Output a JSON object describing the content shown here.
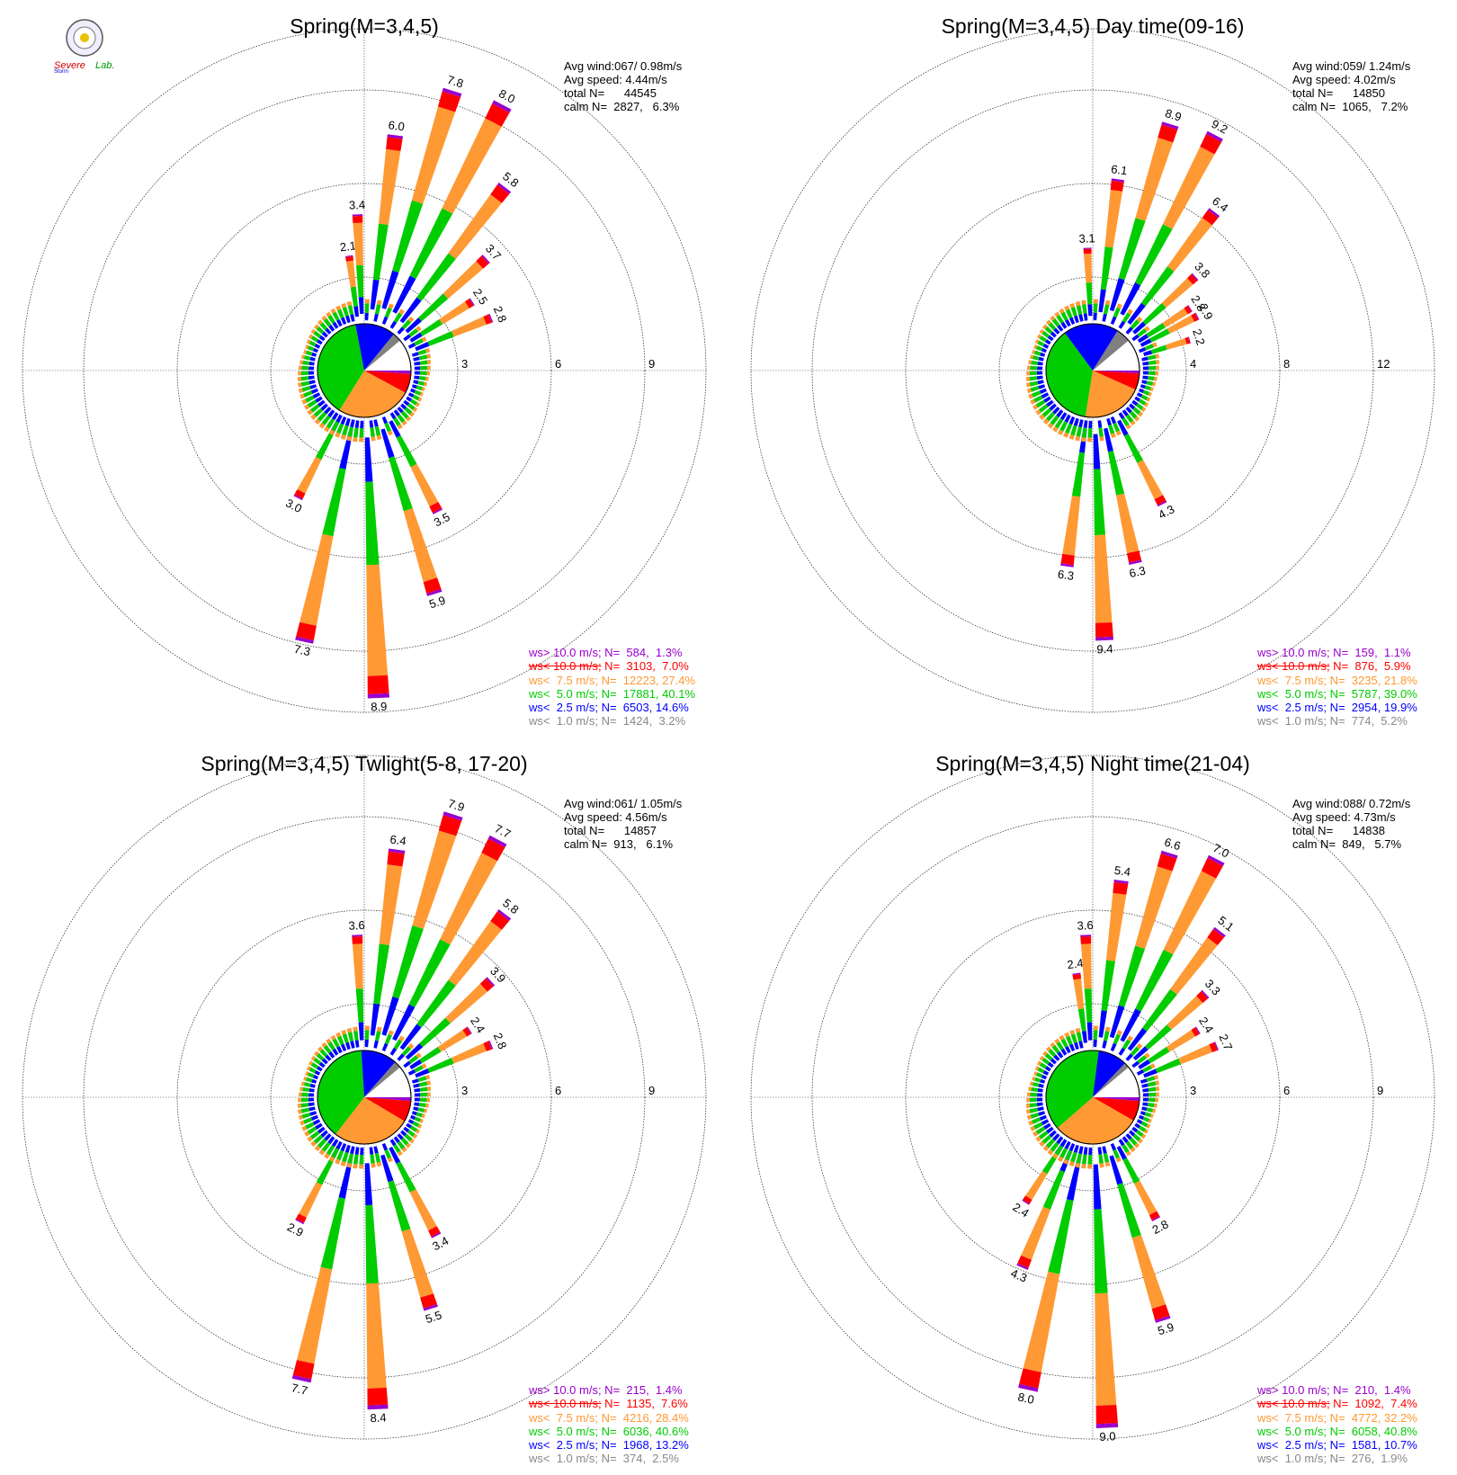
{
  "logo": {
    "text_1": "Severe",
    "text_2": "Storm",
    "text_3": "Lab."
  },
  "legend_template": {
    "ws_gt_10": {
      "op": "ws>",
      "speed": "10.0 m/s;",
      "color": "#9900cc",
      "strike": false
    },
    "ws_lt_10": {
      "op": "ws<",
      "speed": "10.0 m/s;",
      "color": "#ff0000",
      "strike": true
    },
    "ws_lt_7_5": {
      "op": "ws<",
      "speed": " 7.5 m/s;",
      "color": "#ff9933",
      "strike": false
    },
    "ws_lt_5": {
      "op": "ws<",
      "speed": " 5.0 m/s;",
      "color": "#00cc00",
      "strike": false
    },
    "ws_lt_2_5": {
      "op": "ws<",
      "speed": " 2.5 m/s;",
      "color": "#0000ff",
      "strike": false
    },
    "ws_lt_1": {
      "op": "ws<",
      "speed": " 1.0 m/s;",
      "color": "#888888",
      "strike": false
    }
  },
  "colors": {
    "b1": "#ffffff",
    "b2": "#0000ff",
    "b3": "#00cc00",
    "b4": "#ff9933",
    "b5": "#ff0000",
    "b6": "#9900cc",
    "calm_grey": "#808080",
    "ring": "#000000"
  },
  "chart_data": [
    {
      "type": "wind-rose",
      "title": "Spring(M=3,4,5)",
      "stats": {
        "avg_wind_label": "Avg wind:",
        "avg_wind": "067/ 0.98m/s",
        "avg_speed_label": "Avg speed:",
        "avg_speed": "4.44m/s",
        "total_label": "total N=",
        "total": "44545",
        "calm_label": "calm N=",
        "calm": "2827,   6.3%"
      },
      "ring_labels": [
        "3",
        "6",
        "9"
      ],
      "rmax": 9,
      "labeled_spokes": [
        {
          "dir": -7.5,
          "value": "2.1"
        },
        {
          "dir": -2.5,
          "value": "3.4"
        },
        {
          "dir": 7.5,
          "value": "6.0"
        },
        {
          "dir": 17.5,
          "value": "7.8"
        },
        {
          "dir": 27.5,
          "value": "8.0"
        },
        {
          "dir": 37.5,
          "value": "5.8"
        },
        {
          "dir": 47.5,
          "value": "3.7"
        },
        {
          "dir": 57.5,
          "value": "2.5"
        },
        {
          "dir": 67.5,
          "value": "2.8"
        },
        {
          "dir": 152.5,
          "value": "3.5"
        },
        {
          "dir": 162.5,
          "value": "5.9"
        },
        {
          "dir": 177.5,
          "value": "8.9"
        },
        {
          "dir": 192.5,
          "value": "7.3"
        },
        {
          "dir": 207.5,
          "value": "3.0"
        }
      ],
      "legend": {
        "ws_gt_10": "584,  1.3%",
        "ws_lt_10": "3103,  7.0%",
        "ws_lt_7_5": "12223, 27.4%",
        "ws_lt_5": "17881, 40.1%",
        "ws_lt_2_5": "6503, 14.6%",
        "ws_lt_1": "1424,  3.2%"
      },
      "pie": [
        1.3,
        7.0,
        27.4,
        40.1,
        14.6,
        3.2
      ]
    },
    {
      "type": "wind-rose",
      "title": "Spring(M=3,4,5) Day time(09-16)",
      "stats": {
        "avg_wind_label": "Avg wind:",
        "avg_wind": "059/ 1.24m/s",
        "avg_speed_label": "Avg speed:",
        "avg_speed": "4.02m/s",
        "total_label": "total N=",
        "total": "14850",
        "calm_label": "calm N=",
        "calm": "1065,   7.2%"
      },
      "ring_labels": [
        "4",
        "8",
        "12"
      ],
      "rmax": 12,
      "labeled_spokes": [
        {
          "dir": -2.5,
          "value": "3.1"
        },
        {
          "dir": 7.5,
          "value": "6.1"
        },
        {
          "dir": 17.5,
          "value": "8.9"
        },
        {
          "dir": 27.5,
          "value": "9.2"
        },
        {
          "dir": 37.5,
          "value": "6.4"
        },
        {
          "dir": 47.5,
          "value": "3.8"
        },
        {
          "dir": 57.5,
          "value": "2.8"
        },
        {
          "dir": 62.5,
          "value": "2.9"
        },
        {
          "dir": 72.5,
          "value": "2.2"
        },
        {
          "dir": 152.5,
          "value": "4.3"
        },
        {
          "dir": 167.5,
          "value": "6.3"
        },
        {
          "dir": 177.5,
          "value": "9.4"
        },
        {
          "dir": 187.5,
          "value": "6.3"
        }
      ],
      "legend": {
        "ws_gt_10": "159,  1.1%",
        "ws_lt_10": "876,  5.9%",
        "ws_lt_7_5": "3235, 21.8%",
        "ws_lt_5": "5787, 39.0%",
        "ws_lt_2_5": "2954, 19.9%",
        "ws_lt_1": "774,  5.2%"
      },
      "pie": [
        1.1,
        5.9,
        21.8,
        39.0,
        19.9,
        5.2
      ]
    },
    {
      "type": "wind-rose",
      "title": "Spring(M=3,4,5) Twlight(5-8, 17-20)",
      "stats": {
        "avg_wind_label": "Avg wind:",
        "avg_wind": "061/ 1.05m/s",
        "avg_speed_label": "Avg speed:",
        "avg_speed": "4.56m/s",
        "total_label": "total N=",
        "total": "14857",
        "calm_label": "calm N=",
        "calm": "913,   6.1%"
      },
      "ring_labels": [
        "3",
        "6",
        "9"
      ],
      "rmax": 9,
      "labeled_spokes": [
        {
          "dir": -2.5,
          "value": "3.6"
        },
        {
          "dir": 7.5,
          "value": "6.4"
        },
        {
          "dir": 17.5,
          "value": "7.9"
        },
        {
          "dir": 27.5,
          "value": "7.7"
        },
        {
          "dir": 37.5,
          "value": "5.8"
        },
        {
          "dir": 47.5,
          "value": "3.9"
        },
        {
          "dir": 57.5,
          "value": "2.4"
        },
        {
          "dir": 67.5,
          "value": "2.8"
        },
        {
          "dir": 152.5,
          "value": "3.4"
        },
        {
          "dir": 162.5,
          "value": "5.5"
        },
        {
          "dir": 177.5,
          "value": "8.4"
        },
        {
          "dir": 192.5,
          "value": "7.7"
        },
        {
          "dir": 207.5,
          "value": "2.9"
        }
      ],
      "legend": {
        "ws_gt_10": "215,  1.4%",
        "ws_lt_10": "1135,  7.6%",
        "ws_lt_7_5": "4216, 28.4%",
        "ws_lt_5": "6036, 40.6%",
        "ws_lt_2_5": "1968, 13.2%",
        "ws_lt_1": "374,  2.5%"
      },
      "pie": [
        1.4,
        7.6,
        28.4,
        40.6,
        13.2,
        2.5
      ]
    },
    {
      "type": "wind-rose",
      "title": "Spring(M=3,4,5) Night time(21-04)",
      "stats": {
        "avg_wind_label": "Avg wind:",
        "avg_wind": "088/ 0.72m/s",
        "avg_speed_label": "Avg speed:",
        "avg_speed": "4.73m/s",
        "total_label": "total N=",
        "total": "14838",
        "calm_label": "calm N=",
        "calm": "849,   5.7%"
      },
      "ring_labels": [
        "3",
        "6",
        "9"
      ],
      "rmax": 9,
      "labeled_spokes": [
        {
          "dir": -7.5,
          "value": "2.4"
        },
        {
          "dir": -2.5,
          "value": "3.6"
        },
        {
          "dir": 7.5,
          "value": "5.4"
        },
        {
          "dir": 17.5,
          "value": "6.6"
        },
        {
          "dir": 27.5,
          "value": "7.0"
        },
        {
          "dir": 37.5,
          "value": "5.1"
        },
        {
          "dir": 47.5,
          "value": "3.3"
        },
        {
          "dir": 57.5,
          "value": "2.4"
        },
        {
          "dir": 67.5,
          "value": "2.7"
        },
        {
          "dir": 152.5,
          "value": "2.8"
        },
        {
          "dir": 162.5,
          "value": "5.9"
        },
        {
          "dir": 177.5,
          "value": "9.0"
        },
        {
          "dir": 192.5,
          "value": "8.0"
        },
        {
          "dir": 202.5,
          "value": "4.3"
        },
        {
          "dir": 212.5,
          "value": "2.4"
        }
      ],
      "legend": {
        "ws_gt_10": "210,  1.4%",
        "ws_lt_10": "1092,  7.4%",
        "ws_lt_7_5": "4772, 32.2%",
        "ws_lt_5": "6058, 40.8%",
        "ws_lt_2_5": "1581, 10.7%",
        "ws_lt_1": "276,  1.9%"
      },
      "pie": [
        1.4,
        7.4,
        32.2,
        40.8,
        10.7,
        1.9
      ]
    }
  ]
}
